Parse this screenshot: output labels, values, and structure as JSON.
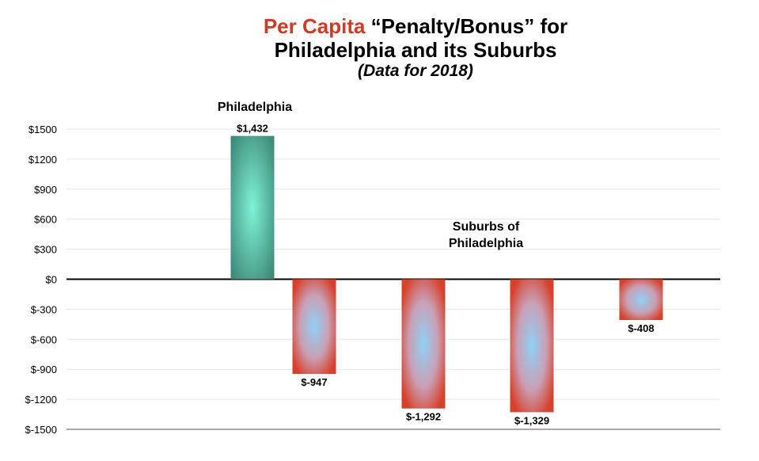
{
  "title": {
    "accent": "Per Capita",
    "rest_line1": " “Penalty/Bonus” for",
    "line2": "Philadelphia and its Suburbs",
    "subtitle": "(Data for 2018)"
  },
  "colors": {
    "accent": "#d03a22",
    "positive": "#5fb39a",
    "negative": "#d8402a",
    "negative_center": "#8fd0f5"
  },
  "chart_data": {
    "type": "bar",
    "values": [
      1432,
      -947,
      -1292,
      -1329,
      -408
    ],
    "data_labels": [
      "$1,432",
      "$-947",
      "$-1,292",
      "$-1,329",
      "$-408"
    ],
    "ylim": [
      -1500,
      1500
    ],
    "y_ticks": [
      1500,
      1200,
      900,
      600,
      300,
      0,
      -300,
      -600,
      -900,
      -1200,
      -1500
    ],
    "y_tick_labels": [
      "$1500",
      "$1200",
      "$900",
      "$600",
      "$300",
      "$0",
      "$-300",
      "$-600",
      "$-900",
      "$-1200",
      "$-1500"
    ],
    "annotations": [
      {
        "text": "Philadelphia"
      },
      {
        "text": "Suburbs of"
      },
      {
        "text": "Philadelphia"
      }
    ],
    "grid": true
  }
}
